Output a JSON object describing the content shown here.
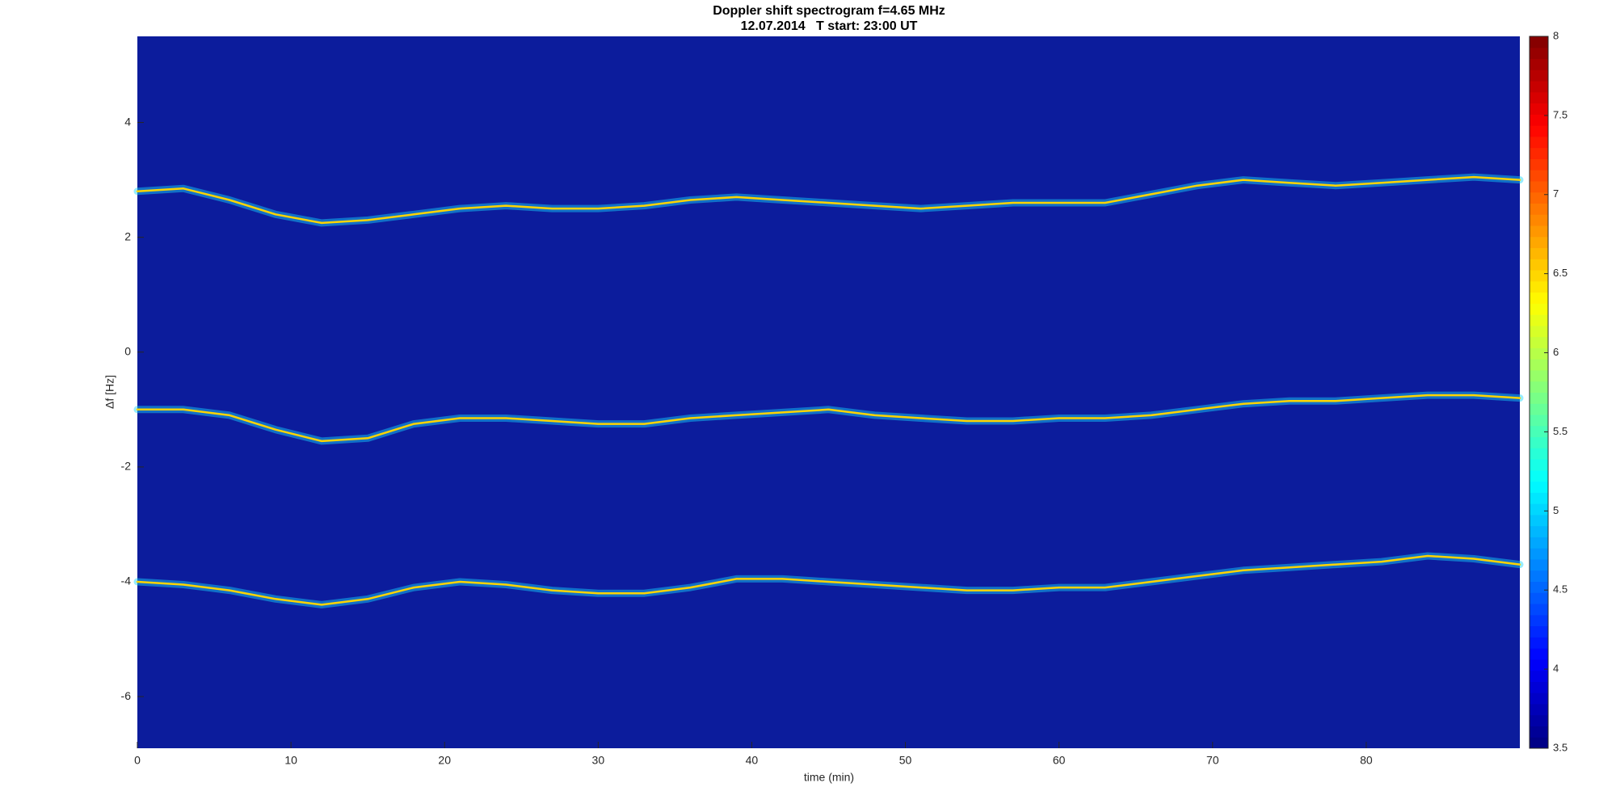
{
  "chart_data": {
    "type": "line",
    "title": "Doppler shift spectrogram f=4.65 MHz",
    "subtitle": "12.07.2014   T start: 23:00 UT",
    "x_label": "time (min)",
    "y_label": "Δf [Hz]",
    "x": [
      0,
      3,
      6,
      9,
      12,
      15,
      18,
      21,
      24,
      27,
      30,
      33,
      36,
      39,
      42,
      45,
      48,
      51,
      54,
      57,
      60,
      63,
      66,
      69,
      72,
      75,
      78,
      81,
      84,
      87,
      90
    ],
    "series": [
      {
        "color": "#ffd400",
        "values": [
          2.8,
          2.85,
          2.65,
          2.4,
          2.25,
          2.3,
          2.4,
          2.5,
          2.55,
          2.5,
          2.5,
          2.55,
          2.65,
          2.7,
          2.65,
          2.6,
          2.55,
          2.5,
          2.55,
          2.6,
          2.6,
          2.6,
          2.75,
          2.9,
          3.0,
          2.95,
          2.9,
          2.95,
          3.0,
          3.05,
          3.0
        ]
      },
      {
        "color": "#ffd400",
        "values": [
          -1.0,
          -1.0,
          -1.1,
          -1.35,
          -1.55,
          -1.5,
          -1.25,
          -1.15,
          -1.15,
          -1.2,
          -1.25,
          -1.25,
          -1.15,
          -1.1,
          -1.05,
          -1.0,
          -1.1,
          -1.15,
          -1.2,
          -1.2,
          -1.15,
          -1.15,
          -1.1,
          -1.0,
          -0.9,
          -0.85,
          -0.85,
          -0.8,
          -0.75,
          -0.75,
          -0.8
        ]
      },
      {
        "color": "#ffd400",
        "values": [
          -4.0,
          -4.05,
          -4.15,
          -4.3,
          -4.4,
          -4.3,
          -4.1,
          -4.0,
          -4.05,
          -4.15,
          -4.2,
          -4.2,
          -4.1,
          -3.95,
          -3.95,
          -4.0,
          -4.05,
          -4.1,
          -4.15,
          -4.15,
          -4.1,
          -4.1,
          -4.0,
          -3.9,
          -3.8,
          -3.75,
          -3.7,
          -3.65,
          -3.55,
          -3.6,
          -3.7
        ]
      }
    ],
    "xlim": [
      0,
      90
    ],
    "xticks": [
      0,
      10,
      20,
      30,
      40,
      50,
      60,
      70,
      80
    ],
    "ylim": [
      -6.9,
      5.5
    ],
    "yticks": [
      -6,
      -4,
      -2,
      0,
      2,
      4
    ],
    "colormap": "jet",
    "clim": [
      3.5,
      8
    ],
    "cticks": [
      3.5,
      4,
      4.5,
      5,
      5.5,
      6,
      6.5,
      7,
      7.5,
      8
    ]
  }
}
